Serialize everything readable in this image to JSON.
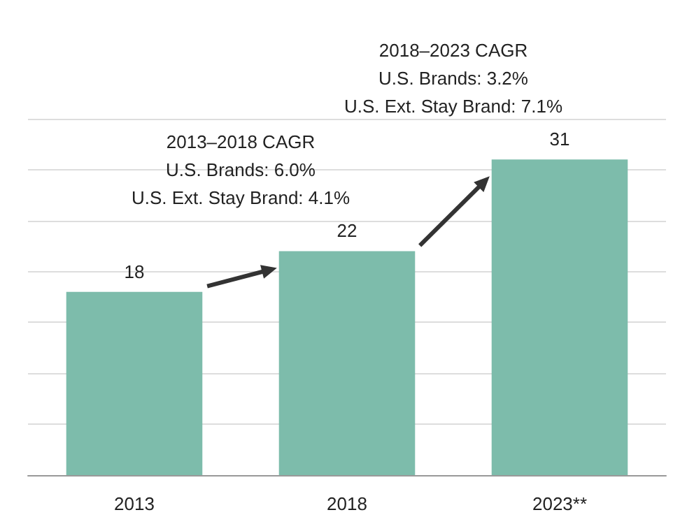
{
  "chart_data": {
    "type": "bar",
    "categories": [
      "2013",
      "2018",
      "2023**"
    ],
    "values": [
      18,
      22,
      31
    ],
    "color": "#7dbcab",
    "data_labels": true,
    "ylim": [
      0,
      35
    ],
    "yticks": [
      {
        "value": 0,
        "label": null
      },
      {
        "value": 5,
        "label": null
      },
      {
        "value": 10,
        "label": null
      },
      {
        "value": 15,
        "label": null
      },
      {
        "value": 20,
        "label": null
      },
      {
        "value": 25,
        "label": null
      },
      {
        "value": 30,
        "label": null
      },
      {
        "value": 35,
        "label": null
      }
    ],
    "grid": "y",
    "tick_labels": "x",
    "annotations": [
      {
        "text": "2013–2018 CAGR\nU.S. Brands: 6.0%\nU.S. Ext. Stay Brand: 4.1%"
      },
      {
        "text": "2018–2023 CAGR\nU.S. Brands: 3.2%\nU.S. Ext. Stay Brand: 7.1%"
      }
    ]
  }
}
